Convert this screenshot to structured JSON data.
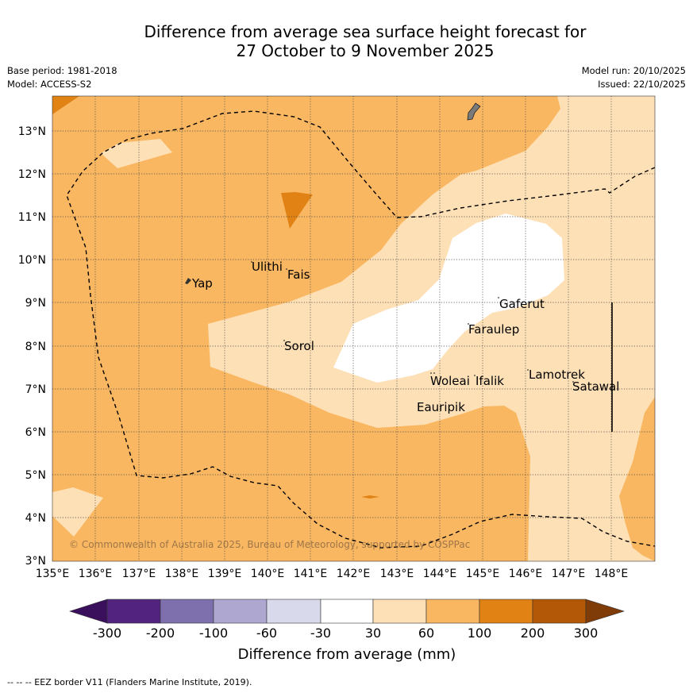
{
  "title": {
    "line1": "Difference from average sea surface height forecast for",
    "line2": "27 October to 9 November 2025"
  },
  "meta": {
    "base_period": "Base period: 1981-2018",
    "model": "Model: ACCESS-S2",
    "model_run": "Model run: 20/10/2025",
    "issued": "Issued: 22/10/2025"
  },
  "map": {
    "lat_labels": [
      "13°N",
      "12°N",
      "11°N",
      "10°N",
      "9°N",
      "8°N",
      "7°N",
      "6°N",
      "5°N",
      "4°N",
      "3°N"
    ],
    "lon_labels": [
      "135°E",
      "136°E",
      "137°E",
      "138°E",
      "139°E",
      "140°E",
      "141°E",
      "142°E",
      "143°E",
      "144°E",
      "145°E",
      "146°E",
      "147°E",
      "148°E"
    ],
    "places": [
      "Yap",
      "Ulithi",
      "Fais",
      "Sorol",
      "Gaferut",
      "Faraulep",
      "Woleai",
      "Ifalik",
      "Lamotrek",
      "Satawal",
      "Eauripik"
    ],
    "copyright": "© Commonwealth of Australia 2025, Bureau of Meteorology, supported by COSPPac"
  },
  "colorbar": {
    "ticks": [
      "-300",
      "-200",
      "-100",
      "-60",
      "-30",
      "30",
      "60",
      "100",
      "200",
      "300"
    ],
    "label": "Difference from average (mm)",
    "colors": [
      "#3a0f5c",
      "#52237f",
      "#7d70ac",
      "#aea8d1",
      "#d9d9ec",
      "#ffffff",
      "#fee0b6",
      "#fab762",
      "#e08214",
      "#b35806",
      "#7f3b08"
    ]
  },
  "footnote": "-- -- -- EEZ border V11 (Flanders Marine Institute, 2019)."
}
